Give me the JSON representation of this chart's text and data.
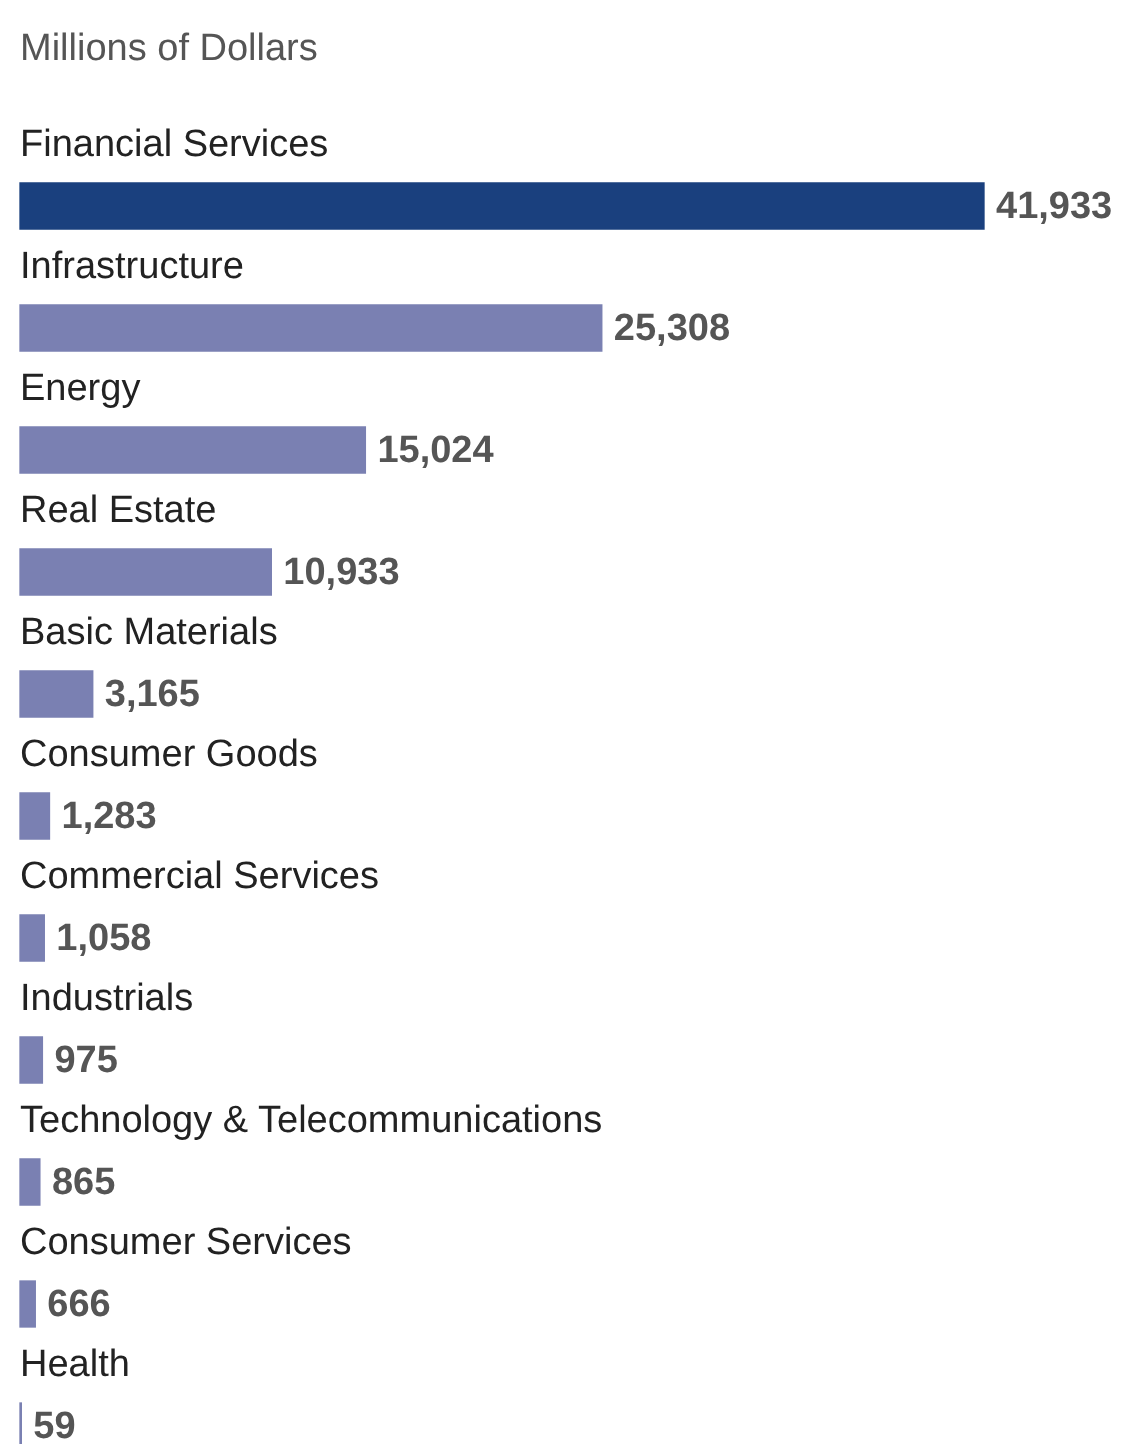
{
  "chart_data": {
    "type": "bar",
    "orientation": "horizontal",
    "title": "Millions of Dollars",
    "categories": [
      "Financial Services",
      "Infrastructure",
      "Energy",
      "Real Estate",
      "Basic Materials",
      "Consumer Goods",
      "Commercial Services",
      "Industrials",
      "Technology & Telecommunications",
      "Consumer Services",
      "Health"
    ],
    "values": [
      41933,
      25308,
      15024,
      10933,
      3165,
      1283,
      1058,
      975,
      865,
      666,
      59
    ],
    "value_labels": [
      "41,933",
      "25,308",
      "15,024",
      "10,933",
      "3,165",
      "1,283",
      "1,058",
      "975",
      "865",
      "666",
      "59"
    ],
    "colors": [
      "#1a407e",
      "#7a80b2",
      "#7a80b2",
      "#7a80b2",
      "#7a80b2",
      "#7a80b2",
      "#7a80b2",
      "#7a80b2",
      "#7a80b2",
      "#7a80b2",
      "#7a80b2"
    ],
    "legend": false
  }
}
